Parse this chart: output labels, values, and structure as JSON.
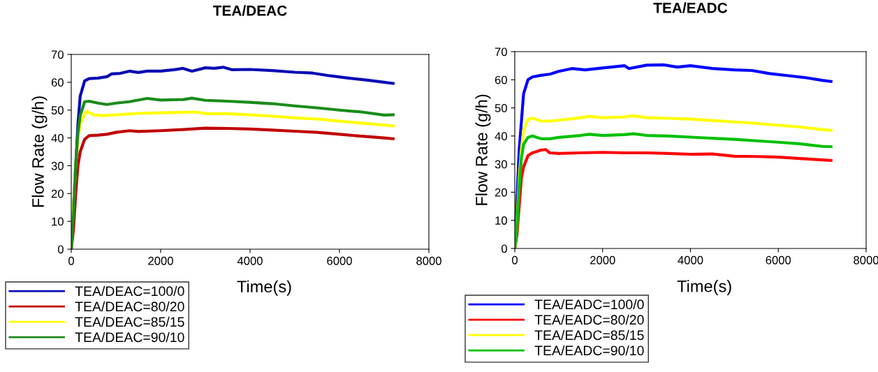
{
  "chart_data": [
    {
      "type": "line",
      "title": "TEA/DEAC",
      "xlabel": "Time(s)",
      "ylabel": "Flow Rate (g/h)",
      "xlim": [
        0,
        8000
      ],
      "xticks": [
        0,
        2000,
        4000,
        6000,
        8000
      ],
      "ylim": [
        0,
        70
      ],
      "yticks": [
        0,
        10,
        20,
        30,
        40,
        50,
        60,
        70
      ],
      "grid": false,
      "legend": "bottom left",
      "marker": "none",
      "line_style": "solid",
      "series": [
        {
          "name": "TEA/DEAC=100/0",
          "color": "#0a0ab4",
          "x": [
            0,
            50,
            150,
            200,
            300,
            400,
            600,
            800,
            900,
            1100,
            1300,
            1500,
            1700,
            2000,
            2300,
            2500,
            2700,
            3000,
            3200,
            3400,
            3600,
            4000,
            4500,
            5000,
            5400,
            5800,
            6200,
            6600,
            7000,
            7200
          ],
          "values": [
            0,
            15,
            45,
            55,
            60.5,
            61.3,
            61.5,
            62,
            63,
            63.2,
            64,
            63.5,
            64,
            64,
            64.5,
            65,
            64,
            65.2,
            65,
            65.4,
            64.5,
            64.6,
            64.2,
            63.6,
            63.3,
            62.3,
            61.5,
            60.8,
            60,
            59.6
          ]
        },
        {
          "name": "TEA/DEAC=80/20",
          "color": "#c00000",
          "x": [
            0,
            50,
            100,
            150,
            200,
            300,
            400,
            600,
            800,
            1000,
            1300,
            1500,
            2000,
            2500,
            3000,
            3500,
            4000,
            4500,
            5000,
            5500,
            6000,
            6500,
            7000,
            7200
          ],
          "values": [
            0,
            7,
            20,
            30,
            35,
            39.5,
            40.8,
            41,
            41.3,
            42,
            42.6,
            42.3,
            42.6,
            43,
            43.5,
            43.4,
            43.2,
            42.8,
            42.4,
            42,
            41.3,
            40.6,
            40,
            39.7
          ]
        },
        {
          "name": "TEA/DEAC=85/15",
          "color": "#ffff00",
          "x": [
            0,
            100,
            150,
            200,
            300,
            350,
            500,
            700,
            1000,
            1500,
            2000,
            2500,
            2800,
            3000,
            3500,
            4000,
            4500,
            5000,
            5500,
            6000,
            6500,
            7000,
            7200
          ],
          "values": [
            0,
            30,
            40,
            45,
            48.5,
            49.5,
            48.3,
            48,
            48.3,
            48.8,
            49,
            49.2,
            49.3,
            48.7,
            48.7,
            48.3,
            47.8,
            47.2,
            46.8,
            46,
            45.3,
            44.6,
            44.3
          ]
        },
        {
          "name": "TEA/DEAC=90/10",
          "color": "#1a8c1a",
          "x": [
            0,
            50,
            100,
            150,
            200,
            300,
            400,
            600,
            800,
            1000,
            1300,
            1700,
            2000,
            2500,
            2700,
            3000,
            3500,
            4000,
            4500,
            5000,
            5500,
            6000,
            6500,
            7000,
            7200
          ],
          "values": [
            0,
            12,
            30,
            42,
            48,
            53,
            53.2,
            52.5,
            52,
            52.5,
            53,
            54.2,
            53.6,
            53.8,
            54.3,
            53.5,
            53.2,
            52.8,
            52.3,
            51.5,
            50.8,
            50,
            49.3,
            48.2,
            48.3
          ]
        }
      ]
    },
    {
      "type": "line",
      "title": "TEA/EADC",
      "xlabel": "Time(s)",
      "ylabel": "Flow Rate (g/h)",
      "xlim": [
        0,
        8000
      ],
      "xticks": [
        0,
        2000,
        4000,
        6000,
        8000
      ],
      "ylim": [
        0,
        70
      ],
      "yticks": [
        0,
        10,
        20,
        30,
        40,
        50,
        60,
        70
      ],
      "grid": false,
      "legend": "bottom left",
      "marker": "none",
      "line_style": "solid",
      "series": [
        {
          "name": "TEA/EADC=100/0",
          "color": "#0000ff",
          "x": [
            0,
            100,
            150,
            200,
            300,
            400,
            600,
            800,
            1000,
            1300,
            1600,
            2000,
            2500,
            2600,
            3000,
            3400,
            3700,
            4000,
            4500,
            5000,
            5400,
            5800,
            6200,
            6600,
            7000,
            7200
          ],
          "values": [
            0,
            35,
            45,
            55,
            60,
            61,
            61.6,
            62,
            63,
            64,
            63.5,
            64.2,
            65,
            64,
            65.2,
            65.3,
            64.5,
            65,
            64,
            63.5,
            63.3,
            62.2,
            61.5,
            60.8,
            59.8,
            59.4
          ]
        },
        {
          "name": "TEA/EADC=80/20",
          "color": "#ff0000",
          "x": [
            0,
            50,
            100,
            150,
            200,
            300,
            400,
            600,
            700,
            800,
            1000,
            1500,
            2000,
            2500,
            3000,
            3500,
            4000,
            4500,
            5000,
            5500,
            6000,
            6500,
            7000,
            7200
          ],
          "values": [
            0,
            5,
            15,
            25,
            29,
            33,
            34,
            35,
            35.2,
            34,
            33.8,
            34,
            34.2,
            34,
            34,
            33.8,
            33.5,
            33.6,
            32.8,
            32.7,
            32.5,
            32,
            31.5,
            31.3
          ]
        },
        {
          "name": "TEA/EADC=85/15",
          "color": "#ffff00",
          "x": [
            0,
            50,
            100,
            150,
            200,
            300,
            400,
            600,
            800,
            1000,
            1500,
            1700,
            2000,
            2500,
            2700,
            3000,
            3500,
            4000,
            4500,
            5000,
            5500,
            6000,
            6500,
            7000,
            7200
          ],
          "values": [
            0,
            10,
            25,
            35,
            42,
            46,
            46.3,
            45.3,
            45.3,
            45.6,
            46.5,
            47,
            46.5,
            46.8,
            47.2,
            46.5,
            46.3,
            46,
            45.5,
            45,
            44.5,
            43.8,
            43.2,
            42.3,
            42
          ]
        },
        {
          "name": "TEA/EADC=90/10",
          "color": "#00c000",
          "x": [
            0,
            50,
            100,
            150,
            200,
            300,
            400,
            600,
            800,
            1000,
            1500,
            1700,
            2000,
            2500,
            2700,
            3000,
            3500,
            4000,
            4500,
            5000,
            5500,
            6000,
            6500,
            7000,
            7200
          ],
          "values": [
            0,
            8,
            22,
            32,
            37,
            39.5,
            40,
            39,
            39,
            39.5,
            40.2,
            40.6,
            40.2,
            40.5,
            40.8,
            40.2,
            40,
            39.6,
            39.2,
            38.8,
            38.3,
            37.8,
            37.2,
            36.3,
            36.2
          ]
        }
      ]
    }
  ]
}
